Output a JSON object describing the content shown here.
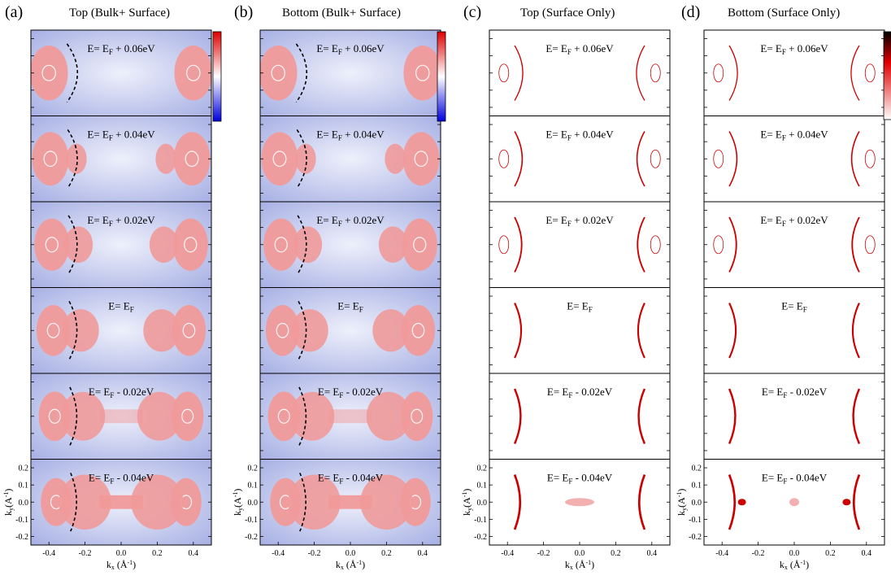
{
  "figure": {
    "panels": [
      {
        "id": "a",
        "label": "(a)",
        "title": "Top (Bulk+ Surface)",
        "kind": "bulk",
        "side": "top"
      },
      {
        "id": "b",
        "label": "(b)",
        "title": "Bottom (Bulk+ Surface)",
        "kind": "bulk",
        "side": "bottom"
      },
      {
        "id": "c",
        "label": "(c)",
        "title": "Top (Surface Only)",
        "kind": "surface",
        "side": "top"
      },
      {
        "id": "d",
        "label": "(d)",
        "title": "Bottom (Surface Only)",
        "kind": "surface",
        "side": "bottom"
      }
    ],
    "energy_rows": [
      {
        "prefix": "E= E",
        "sub": "F",
        "suffix": " + 0.06eV",
        "offset_eV": 0.06
      },
      {
        "prefix": "E= E",
        "sub": "F",
        "suffix": " + 0.04eV",
        "offset_eV": 0.04
      },
      {
        "prefix": "E= E",
        "sub": "F",
        "suffix": " + 0.02eV",
        "offset_eV": 0.02
      },
      {
        "prefix": "E= E",
        "sub": "F",
        "suffix": "",
        "offset_eV": 0.0
      },
      {
        "prefix": "E= E",
        "sub": "F",
        "suffix": " - 0.02eV",
        "offset_eV": -0.02
      },
      {
        "prefix": "E= E",
        "sub": "F",
        "suffix": " - 0.04eV",
        "offset_eV": -0.04
      }
    ],
    "x_axis": {
      "label_main": "k",
      "label_sub": "x",
      "label_unit_open": " (Å",
      "label_unit_exp": "-1",
      "label_unit_close": ")",
      "range": [
        -0.5,
        0.5
      ],
      "ticks": [
        -0.4,
        -0.2,
        0.0,
        0.2,
        0.4
      ],
      "tick_labels": [
        "-0.4",
        "-0.2",
        "0.0",
        "0.2",
        "0.4"
      ]
    },
    "y_axis": {
      "label_main": "k",
      "label_sub": "y",
      "label_unit_open": "(A",
      "label_unit_exp": "-1",
      "label_unit_close": ")",
      "range": [
        -0.25,
        0.25
      ],
      "ticks": [
        0.2,
        0.1,
        0.0,
        -0.1,
        -0.2
      ],
      "tick_labels": [
        "0.2",
        "0.1",
        "0.0",
        "-0.1",
        "-0.2"
      ]
    },
    "colorbars": {
      "bulk": {
        "stops": [
          "#e00000",
          "#ffffff",
          "#0000e0"
        ]
      },
      "surface": {
        "stops": [
          "#000000",
          "#e00000",
          "#ffffff"
        ]
      }
    },
    "colors": {
      "bulk_bg": "#a9b2e6",
      "bulk_feature": "#f09a9a",
      "surface_line": "#cc0000",
      "dashed": "#000000"
    }
  }
}
